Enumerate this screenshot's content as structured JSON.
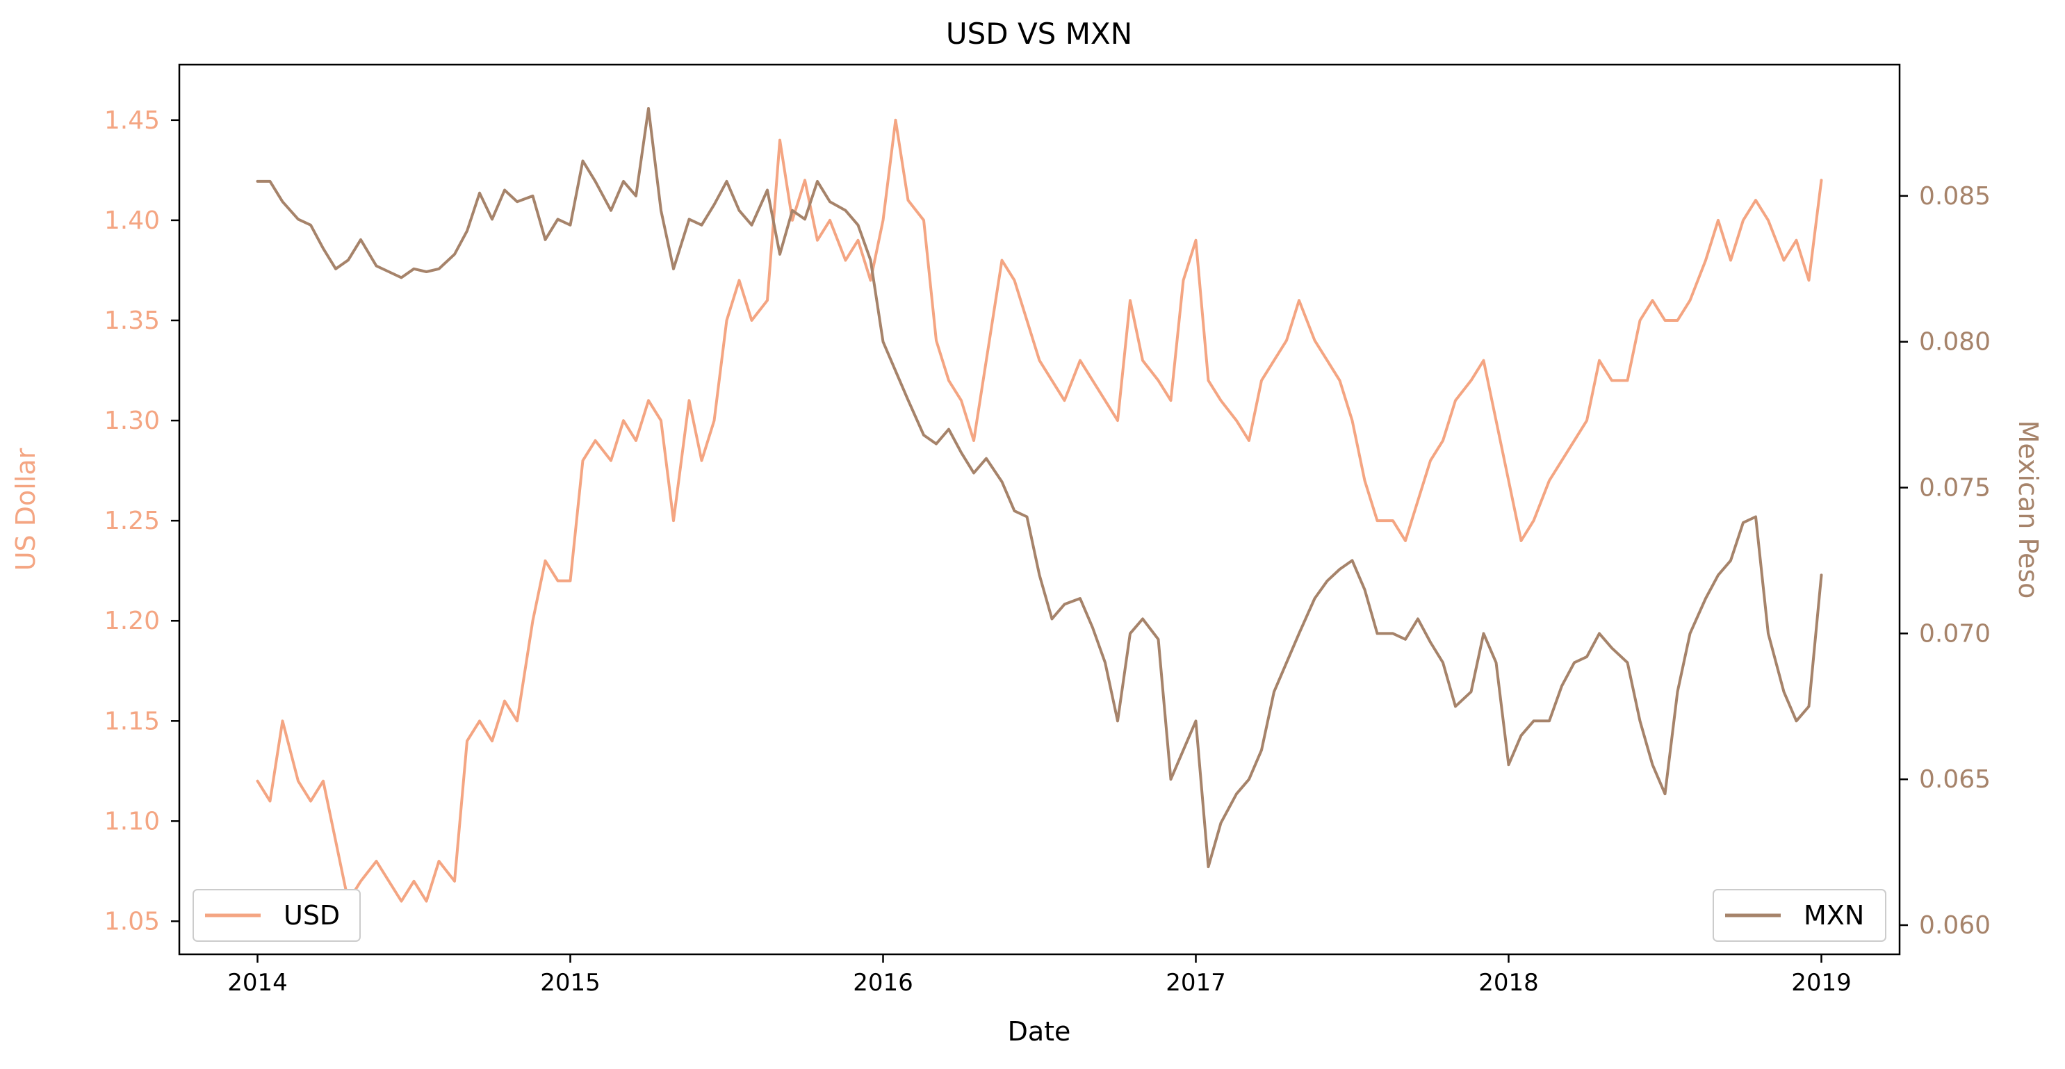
{
  "chart_data": {
    "type": "line",
    "title": "USD VS MXN",
    "xlabel": "Date",
    "ylabel_left": "US Dollar",
    "ylabel_right": "Mexican Peso",
    "x_ticks": [
      "2014",
      "2015",
      "2016",
      "2017",
      "2018",
      "2019"
    ],
    "x_range": [
      2013.75,
      2019.25
    ],
    "y_left": {
      "range": [
        1.0335,
        1.4777
      ],
      "ticks": [
        "1.05",
        "1.10",
        "1.15",
        "1.20",
        "1.25",
        "1.30",
        "1.35",
        "1.40",
        "1.45"
      ]
    },
    "y_right": {
      "range": [
        0.059,
        0.0895
      ],
      "ticks": [
        "0.060",
        "0.065",
        "0.070",
        "0.075",
        "0.080",
        "0.085"
      ]
    },
    "grid": false,
    "colors": {
      "usd": "#f4a582",
      "mxn": "#a6836a",
      "axis": "#000000"
    },
    "series": [
      {
        "name": "USD",
        "axis": "left",
        "legend_position": "lower-left",
        "x": [
          2014.0,
          2014.04,
          2014.08,
          2014.13,
          2014.17,
          2014.21,
          2014.25,
          2014.29,
          2014.33,
          2014.38,
          2014.42,
          2014.46,
          2014.5,
          2014.54,
          2014.58,
          2014.63,
          2014.67,
          2014.71,
          2014.75,
          2014.79,
          2014.83,
          2014.88,
          2014.92,
          2014.96,
          2015.0,
          2015.04,
          2015.08,
          2015.13,
          2015.17,
          2015.21,
          2015.25,
          2015.29,
          2015.33,
          2015.38,
          2015.42,
          2015.46,
          2015.5,
          2015.54,
          2015.58,
          2015.63,
          2015.67,
          2015.71,
          2015.75,
          2015.79,
          2015.83,
          2015.88,
          2015.92,
          2015.96,
          2016.0,
          2016.04,
          2016.08,
          2016.13,
          2016.17,
          2016.21,
          2016.25,
          2016.29,
          2016.33,
          2016.38,
          2016.42,
          2016.46,
          2016.5,
          2016.54,
          2016.58,
          2016.63,
          2016.67,
          2016.71,
          2016.75,
          2016.79,
          2016.83,
          2016.88,
          2016.92,
          2016.96,
          2017.0,
          2017.04,
          2017.08,
          2017.13,
          2017.17,
          2017.21,
          2017.25,
          2017.29,
          2017.33,
          2017.38,
          2017.42,
          2017.46,
          2017.5,
          2017.54,
          2017.58,
          2017.63,
          2017.67,
          2017.71,
          2017.75,
          2017.79,
          2017.83,
          2017.88,
          2017.92,
          2017.96,
          2018.0,
          2018.04,
          2018.08,
          2018.13,
          2018.17,
          2018.21,
          2018.25,
          2018.29,
          2018.33,
          2018.38,
          2018.42,
          2018.46,
          2018.5,
          2018.54,
          2018.58,
          2018.63,
          2018.67,
          2018.71,
          2018.75,
          2018.79,
          2018.83,
          2018.88,
          2018.92,
          2018.96,
          2019.0
        ],
        "values": [
          1.12,
          1.11,
          1.15,
          1.12,
          1.11,
          1.12,
          1.09,
          1.06,
          1.07,
          1.08,
          1.07,
          1.06,
          1.07,
          1.06,
          1.08,
          1.07,
          1.14,
          1.15,
          1.14,
          1.16,
          1.15,
          1.2,
          1.23,
          1.22,
          1.22,
          1.28,
          1.29,
          1.28,
          1.3,
          1.29,
          1.31,
          1.3,
          1.25,
          1.31,
          1.28,
          1.3,
          1.35,
          1.37,
          1.35,
          1.36,
          1.44,
          1.4,
          1.42,
          1.39,
          1.4,
          1.38,
          1.39,
          1.37,
          1.4,
          1.45,
          1.41,
          1.4,
          1.34,
          1.32,
          1.31,
          1.29,
          1.33,
          1.38,
          1.37,
          1.35,
          1.33,
          1.32,
          1.31,
          1.33,
          1.32,
          1.31,
          1.3,
          1.36,
          1.33,
          1.32,
          1.31,
          1.37,
          1.39,
          1.32,
          1.31,
          1.3,
          1.29,
          1.32,
          1.33,
          1.34,
          1.36,
          1.34,
          1.33,
          1.32,
          1.3,
          1.27,
          1.25,
          1.25,
          1.24,
          1.26,
          1.28,
          1.29,
          1.31,
          1.32,
          1.33,
          1.3,
          1.27,
          1.24,
          1.25,
          1.27,
          1.28,
          1.29,
          1.3,
          1.33,
          1.32,
          1.32,
          1.35,
          1.36,
          1.35,
          1.35,
          1.36,
          1.38,
          1.4,
          1.38,
          1.4,
          1.41,
          1.4,
          1.38,
          1.39,
          1.37,
          1.42
        ]
      },
      {
        "name": "MXN",
        "axis": "right",
        "legend_position": "lower-right",
        "x": [
          2014.0,
          2014.04,
          2014.08,
          2014.13,
          2014.17,
          2014.21,
          2014.25,
          2014.29,
          2014.33,
          2014.38,
          2014.42,
          2014.46,
          2014.5,
          2014.54,
          2014.58,
          2014.63,
          2014.67,
          2014.71,
          2014.75,
          2014.79,
          2014.83,
          2014.88,
          2014.92,
          2014.96,
          2015.0,
          2015.04,
          2015.08,
          2015.13,
          2015.17,
          2015.21,
          2015.25,
          2015.29,
          2015.33,
          2015.38,
          2015.42,
          2015.46,
          2015.5,
          2015.54,
          2015.58,
          2015.63,
          2015.67,
          2015.71,
          2015.75,
          2015.79,
          2015.83,
          2015.88,
          2015.92,
          2015.96,
          2016.0,
          2016.04,
          2016.08,
          2016.13,
          2016.17,
          2016.21,
          2016.25,
          2016.29,
          2016.33,
          2016.38,
          2016.42,
          2016.46,
          2016.5,
          2016.54,
          2016.58,
          2016.63,
          2016.67,
          2016.71,
          2016.75,
          2016.79,
          2016.83,
          2016.88,
          2016.92,
          2016.96,
          2017.0,
          2017.04,
          2017.08,
          2017.13,
          2017.17,
          2017.21,
          2017.25,
          2017.29,
          2017.33,
          2017.38,
          2017.42,
          2017.46,
          2017.5,
          2017.54,
          2017.58,
          2017.63,
          2017.67,
          2017.71,
          2017.75,
          2017.79,
          2017.83,
          2017.88,
          2017.92,
          2017.96,
          2018.0,
          2018.04,
          2018.08,
          2018.13,
          2018.17,
          2018.21,
          2018.25,
          2018.29,
          2018.33,
          2018.38,
          2018.42,
          2018.46,
          2018.5,
          2018.54,
          2018.58,
          2018.63,
          2018.67,
          2018.71,
          2018.75,
          2018.79,
          2018.83,
          2018.88,
          2018.92,
          2018.96,
          2019.0
        ],
        "values": [
          0.0855,
          0.0855,
          0.0848,
          0.0842,
          0.084,
          0.0832,
          0.0825,
          0.0828,
          0.0835,
          0.0826,
          0.0824,
          0.0822,
          0.0825,
          0.0824,
          0.0825,
          0.083,
          0.0838,
          0.0851,
          0.0842,
          0.0852,
          0.0848,
          0.085,
          0.0835,
          0.0842,
          0.084,
          0.0862,
          0.0855,
          0.0845,
          0.0855,
          0.085,
          0.088,
          0.0845,
          0.0825,
          0.0842,
          0.084,
          0.0847,
          0.0855,
          0.0845,
          0.084,
          0.0852,
          0.083,
          0.0845,
          0.0842,
          0.0855,
          0.0848,
          0.0845,
          0.084,
          0.0828,
          0.08,
          0.079,
          0.078,
          0.0768,
          0.0765,
          0.077,
          0.0762,
          0.0755,
          0.076,
          0.0752,
          0.0742,
          0.074,
          0.072,
          0.0705,
          0.071,
          0.0712,
          0.0702,
          0.069,
          0.067,
          0.07,
          0.0705,
          0.0698,
          0.065,
          0.066,
          0.067,
          0.062,
          0.0635,
          0.0645,
          0.065,
          0.066,
          0.068,
          0.069,
          0.07,
          0.0712,
          0.0718,
          0.0722,
          0.0725,
          0.0715,
          0.07,
          0.07,
          0.0698,
          0.0705,
          0.0697,
          0.069,
          0.0675,
          0.068,
          0.07,
          0.069,
          0.0655,
          0.0665,
          0.067,
          0.067,
          0.0682,
          0.069,
          0.0692,
          0.07,
          0.0695,
          0.069,
          0.067,
          0.0655,
          0.0645,
          0.068,
          0.07,
          0.0712,
          0.072,
          0.0725,
          0.0738,
          0.074,
          0.07,
          0.068,
          0.067,
          0.0675,
          0.072
        ]
      }
    ]
  }
}
